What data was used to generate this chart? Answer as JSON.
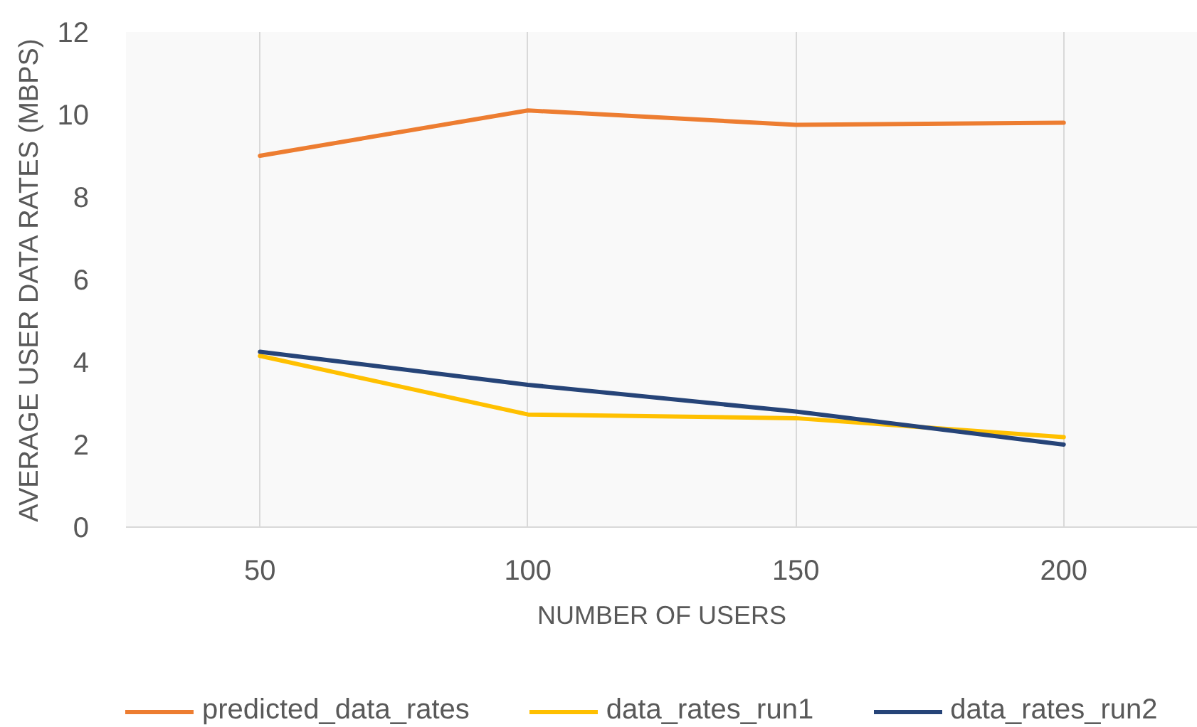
{
  "chart_data": {
    "type": "line",
    "xlabel": "NUMBER OF USERS",
    "ylabel": "AVERAGE USER DATA RATES (MBPS)",
    "categories": [
      "50",
      "100",
      "150",
      "200"
    ],
    "series": [
      {
        "name": "predicted_data_rates",
        "color": "#ed7d31",
        "values": [
          9.0,
          10.1,
          9.75,
          9.8
        ]
      },
      {
        "name": "data_rates_run1",
        "color": "#ffc000",
        "values": [
          4.15,
          2.73,
          2.64,
          2.18
        ]
      },
      {
        "name": "data_rates_run2",
        "color": "#264478",
        "values": [
          4.25,
          3.45,
          2.8,
          2.0
        ]
      }
    ],
    "ylim": [
      0,
      12
    ],
    "yticks": [
      0,
      2,
      4,
      6,
      8,
      10,
      12
    ],
    "grid": "x",
    "legend": "bottom",
    "line_style": "solid"
  }
}
